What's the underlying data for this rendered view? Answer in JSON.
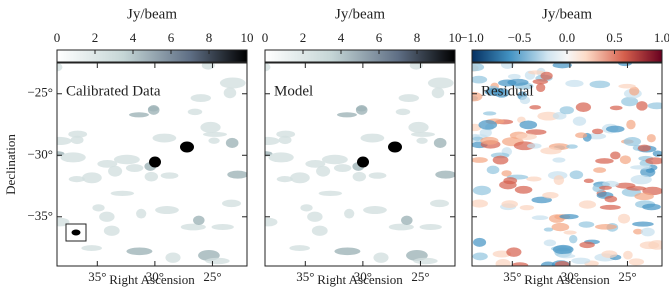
{
  "chart_data": [
    {
      "type": "image",
      "title": "Calibrated Data",
      "colorbar_label": "Jy/beam",
      "colormap": "bone_r",
      "clim": [
        0,
        10
      ],
      "cticks": [
        0,
        2,
        4,
        6,
        8,
        10
      ],
      "xlabel": "Right Ascension",
      "ylabel": "Declination",
      "xlim": [
        38.5,
        22
      ],
      "xticks": [
        {
          "value": 35,
          "label": "35°"
        },
        {
          "value": 30,
          "label": "30°"
        },
        {
          "value": 25,
          "label": "25°"
        }
      ],
      "ylim": [
        -39,
        -22.5
      ],
      "yticks": [
        {
          "value": -25,
          "label": "−25°"
        },
        {
          "value": -30,
          "label": "−30°"
        },
        {
          "value": -35,
          "label": "−35°"
        }
      ]
    },
    {
      "type": "image",
      "title": "Model",
      "colorbar_label": "Jy/beam",
      "colormap": "bone_r",
      "clim": [
        0,
        10
      ],
      "cticks": [
        0,
        2,
        4,
        6,
        8,
        10
      ],
      "xlabel": "Right Ascension",
      "xlim": [
        38.5,
        22
      ],
      "xticks": [
        {
          "value": 35,
          "label": "35°"
        },
        {
          "value": 30,
          "label": "30°"
        },
        {
          "value": 25,
          "label": "25°"
        }
      ],
      "ylim": [
        -39,
        -22.5
      ]
    },
    {
      "type": "image",
      "title": "Residual",
      "colorbar_label": "Jy/beam",
      "colormap": "RdBu_r",
      "clim": [
        -1,
        1
      ],
      "cticks": [
        {
          "value": -1,
          "label": "−1.0"
        },
        {
          "value": -0.5,
          "label": "−0.5"
        },
        {
          "value": 0,
          "label": "0.0"
        },
        0.5,
        {
          "value": 1,
          "label": "1.0"
        }
      ],
      "xlabel": "Right Ascension",
      "xlim": [
        38.5,
        22
      ],
      "xticks": [
        {
          "value": 35,
          "label": "35°"
        },
        {
          "value": 30,
          "label": "30°"
        },
        {
          "value": 25,
          "label": "25°"
        }
      ],
      "ylim": [
        -39,
        -22.5
      ]
    }
  ]
}
